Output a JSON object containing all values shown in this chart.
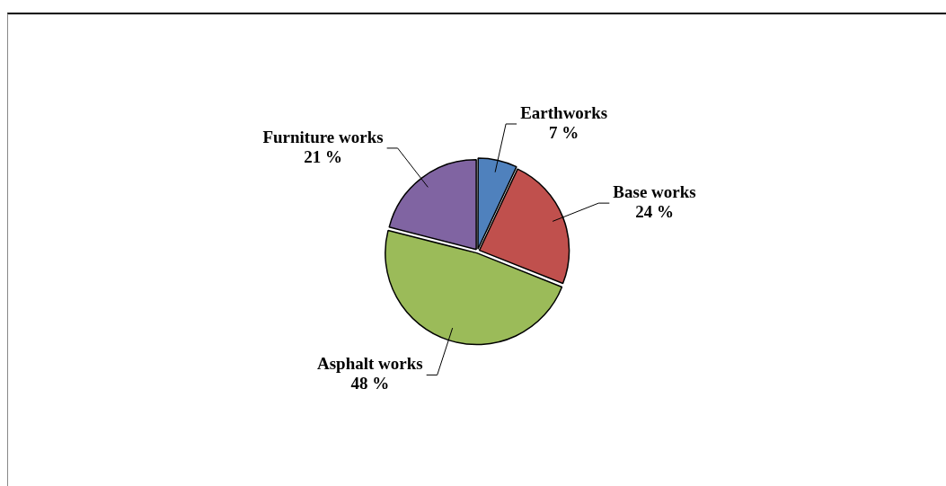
{
  "chart_data": {
    "type": "pie",
    "categories": [
      "Earthworks",
      "Base works",
      "Asphalt works",
      "Furniture works"
    ],
    "values": [
      7,
      24,
      48,
      21
    ],
    "value_labels": [
      "7 %",
      "24 %",
      "48 %",
      "21 %"
    ],
    "colors": [
      "#4f81bd",
      "#c0504d",
      "#9bbb59",
      "#8064a2"
    ],
    "legend": false
  }
}
